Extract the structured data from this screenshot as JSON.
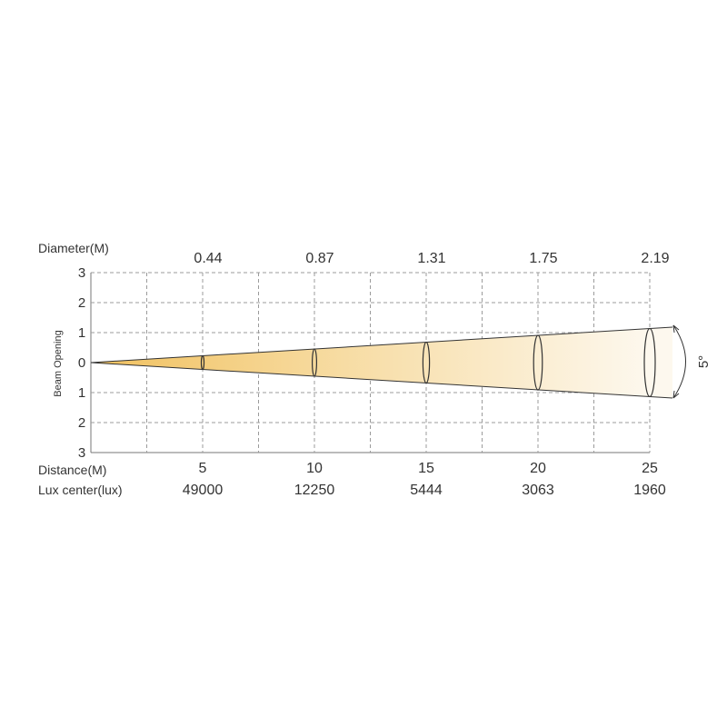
{
  "labels": {
    "diameter_header": "Diameter(M)",
    "distance_header": "Distance(M)",
    "lux_header": "Lux center(lux)",
    "beam_opening": "Beam Opening",
    "beam_angle": "5°"
  },
  "colors": {
    "beam_near": "#f1c15f",
    "beam_far": "#fdf8ee",
    "grid": "#9b9b9b",
    "text": "#333333"
  },
  "chart_data": {
    "type": "beam-angle-diagram",
    "beam_angle_deg": 5,
    "y_ticks": [
      "3",
      "2",
      "1",
      "0",
      "1",
      "2",
      "3"
    ],
    "y_range": [
      -3,
      3
    ],
    "x_range": [
      0,
      25
    ],
    "points": [
      {
        "distance": "5",
        "diameter": "0.44",
        "lux": "49000",
        "distance_m": 5,
        "diameter_m": 0.44
      },
      {
        "distance": "10",
        "diameter": "0.87",
        "lux": "12250",
        "distance_m": 10,
        "diameter_m": 0.87
      },
      {
        "distance": "15",
        "diameter": "1.31",
        "lux": "5444",
        "distance_m": 15,
        "diameter_m": 1.31
      },
      {
        "distance": "20",
        "diameter": "1.75",
        "lux": "3063",
        "distance_m": 20,
        "diameter_m": 1.75
      },
      {
        "distance": "25",
        "diameter": "2.19",
        "lux": "1960",
        "distance_m": 25,
        "diameter_m": 2.19
      }
    ]
  }
}
